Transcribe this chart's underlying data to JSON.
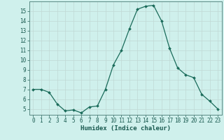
{
  "x": [
    0,
    1,
    2,
    3,
    4,
    5,
    6,
    7,
    8,
    9,
    10,
    11,
    12,
    13,
    14,
    15,
    16,
    17,
    18,
    19,
    20,
    21,
    22,
    23
  ],
  "y": [
    7.0,
    7.0,
    6.7,
    5.5,
    4.8,
    4.9,
    4.6,
    5.2,
    5.3,
    7.0,
    9.5,
    11.0,
    13.2,
    15.2,
    15.5,
    15.6,
    14.0,
    11.2,
    9.2,
    8.5,
    8.2,
    6.5,
    5.8,
    5.0
  ],
  "line_color": "#1a6b5a",
  "marker": "D",
  "marker_size": 2.0,
  "xlabel": "Humidex (Indice chaleur)",
  "xlim": [
    -0.5,
    23.5
  ],
  "ylim": [
    4.4,
    16.0
  ],
  "yticks": [
    5,
    6,
    7,
    8,
    9,
    10,
    11,
    12,
    13,
    14,
    15
  ],
  "xticks": [
    0,
    1,
    2,
    3,
    4,
    5,
    6,
    7,
    8,
    9,
    10,
    11,
    12,
    13,
    14,
    15,
    16,
    17,
    18,
    19,
    20,
    21,
    22,
    23
  ],
  "bg_color": "#cff0ec",
  "grid_minor_color": "#b8ddd8",
  "grid_major_color": "#c0d8d4",
  "tick_color": "#1a5a50",
  "xlabel_color": "#1a5a50",
  "tick_fontsize": 5.5,
  "xlabel_fontsize": 6.5
}
